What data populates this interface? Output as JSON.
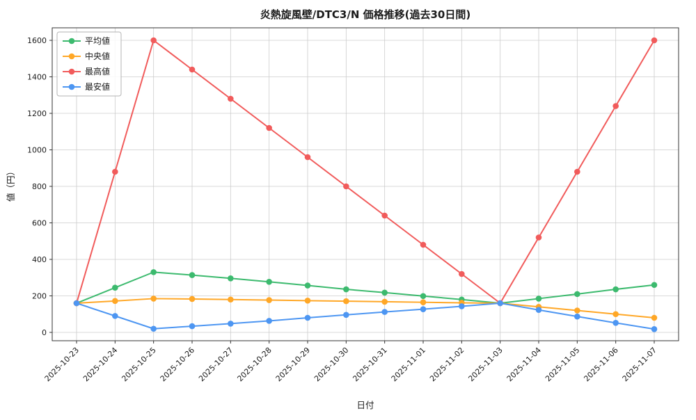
{
  "chart_data": {
    "type": "line",
    "title": "炎熱旋風壁/DTC3/N 価格推移(過去30日間)",
    "xlabel": "日付",
    "ylabel": "値（円）",
    "x": [
      "2025-10-23",
      "2025-10-24",
      "2025-10-25",
      "2025-10-26",
      "2025-10-27",
      "2025-10-28",
      "2025-10-29",
      "2025-10-30",
      "2025-10-31",
      "2025-11-01",
      "2025-11-02",
      "2025-11-03",
      "2025-11-04",
      "2025-11-05",
      "2025-11-06",
      "2025-11-07"
    ],
    "series": [
      {
        "name": "平均値",
        "color": "#3cba6e",
        "values": [
          160,
          245,
          330,
          314,
          296,
          277,
          257,
          236,
          218,
          199,
          180,
          160,
          185,
          210,
          236,
          260
        ]
      },
      {
        "name": "中央値",
        "color": "#ffa726",
        "values": [
          160,
          172,
          185,
          183,
          180,
          177,
          174,
          171,
          168,
          165,
          162,
          160,
          140,
          120,
          100,
          80
        ]
      },
      {
        "name": "最高値",
        "color": "#f15b5b",
        "values": [
          160,
          880,
          1600,
          1440,
          1280,
          1120,
          960,
          800,
          640,
          480,
          320,
          160,
          520,
          880,
          1240,
          1600
        ]
      },
      {
        "name": "最安値",
        "color": "#4d96f2",
        "values": [
          160,
          90,
          20,
          34,
          48,
          63,
          80,
          96,
          112,
          127,
          143,
          160,
          123,
          87,
          52,
          18
        ]
      }
    ],
    "ylim": [
      0,
      1600
    ],
    "yticks": [
      0,
      200,
      400,
      600,
      800,
      1000,
      1200,
      1400,
      1600
    ],
    "grid": true,
    "legend_position": "upper-left",
    "grid_color": "#cccccc",
    "spine_color": "#333333",
    "text_color": "#1a1a1a"
  }
}
